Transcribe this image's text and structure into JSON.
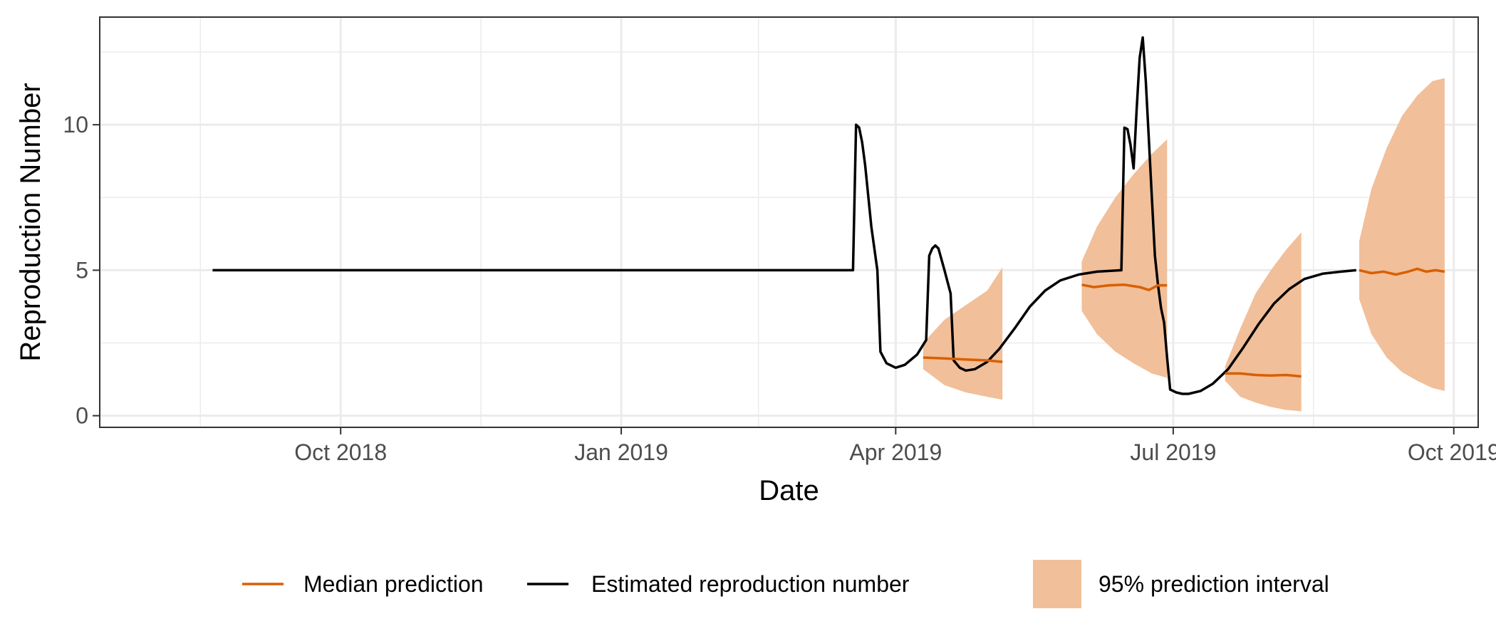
{
  "chart_data": {
    "type": "line",
    "title": "",
    "xlabel": "Date",
    "ylabel": "Reproduction Number",
    "x_axis_type": "date",
    "xlim": [
      "2018-07-14",
      "2019-10-09"
    ],
    "ylim": [
      -0.4,
      13.7
    ],
    "grid": true,
    "theme": "bw",
    "x_ticks": [
      {
        "value": "2018-10-01",
        "label": "Oct 2018"
      },
      {
        "value": "2019-01-01",
        "label": "Jan 2019"
      },
      {
        "value": "2019-04-01",
        "label": "Apr 2019"
      },
      {
        "value": "2019-07-01",
        "label": "Jul 2019"
      },
      {
        "value": "2019-10-01",
        "label": "Oct 2019"
      }
    ],
    "x_minor_ticks": [
      "2018-08-16",
      "2018-11-16",
      "2019-02-15",
      "2019-05-16",
      "2019-08-16"
    ],
    "y_ticks": [
      {
        "value": 0,
        "label": "0"
      },
      {
        "value": 5,
        "label": "5"
      },
      {
        "value": 10,
        "label": "10"
      }
    ],
    "y_minor_ticks": [
      2.5,
      7.5,
      12.5
    ],
    "legend": {
      "position": "bottom",
      "entries": [
        {
          "label": "Median prediction",
          "type": "line",
          "color": "#d95f02"
        },
        {
          "label": "Estimated reproduction number",
          "type": "line",
          "color": "#000000"
        },
        {
          "label": "95% prediction interval",
          "type": "fill",
          "color": "#f1bf99"
        }
      ]
    },
    "series": [
      {
        "name": "Estimated reproduction number",
        "color": "#000000",
        "points": [
          [
            "2018-08-20",
            5.0
          ],
          [
            "2019-03-18",
            5.0
          ],
          [
            "2019-03-19",
            10.0
          ],
          [
            "2019-03-20",
            9.9
          ],
          [
            "2019-03-21",
            9.4
          ],
          [
            "2019-03-22",
            8.6
          ],
          [
            "2019-03-24",
            6.5
          ],
          [
            "2019-03-26",
            5.0
          ],
          [
            "2019-03-27",
            2.2
          ],
          [
            "2019-03-29",
            1.8
          ],
          [
            "2019-04-01",
            1.65
          ],
          [
            "2019-04-04",
            1.75
          ],
          [
            "2019-04-08",
            2.1
          ],
          [
            "2019-04-11",
            2.6
          ],
          [
            "2019-04-12",
            5.5
          ],
          [
            "2019-04-13",
            5.75
          ],
          [
            "2019-04-14",
            5.85
          ],
          [
            "2019-04-15",
            5.75
          ],
          [
            "2019-04-17",
            5.0
          ],
          [
            "2019-04-19",
            4.2
          ],
          [
            "2019-04-20",
            1.9
          ],
          [
            "2019-04-22",
            1.65
          ],
          [
            "2019-04-24",
            1.55
          ],
          [
            "2019-04-27",
            1.6
          ],
          [
            "2019-05-01",
            1.85
          ],
          [
            "2019-05-05",
            2.3
          ],
          [
            "2019-05-10",
            3.0
          ],
          [
            "2019-05-15",
            3.75
          ],
          [
            "2019-05-20",
            4.3
          ],
          [
            "2019-05-25",
            4.65
          ],
          [
            "2019-05-31",
            4.85
          ],
          [
            "2019-06-06",
            4.95
          ],
          [
            "2019-06-14",
            5.0
          ],
          [
            "2019-06-15",
            9.9
          ],
          [
            "2019-06-16",
            9.85
          ],
          [
            "2019-06-17",
            9.3
          ],
          [
            "2019-06-18",
            8.5
          ],
          [
            "2019-06-19",
            10.5
          ],
          [
            "2019-06-20",
            12.3
          ],
          [
            "2019-06-21",
            13.0
          ],
          [
            "2019-06-22",
            11.5
          ],
          [
            "2019-06-23",
            9.5
          ],
          [
            "2019-06-24",
            7.5
          ],
          [
            "2019-06-25",
            5.5
          ],
          [
            "2019-06-26",
            4.5
          ],
          [
            "2019-06-27",
            3.7
          ],
          [
            "2019-06-28",
            3.2
          ],
          [
            "2019-06-29",
            2.0
          ],
          [
            "2019-06-30",
            0.9
          ],
          [
            "2019-07-02",
            0.8
          ],
          [
            "2019-07-04",
            0.75
          ],
          [
            "2019-07-06",
            0.75
          ],
          [
            "2019-07-10",
            0.85
          ],
          [
            "2019-07-14",
            1.1
          ],
          [
            "2019-07-19",
            1.6
          ],
          [
            "2019-07-24",
            2.35
          ],
          [
            "2019-07-29",
            3.15
          ],
          [
            "2019-08-03",
            3.85
          ],
          [
            "2019-08-08",
            4.35
          ],
          [
            "2019-08-13",
            4.7
          ],
          [
            "2019-08-19",
            4.88
          ],
          [
            "2019-08-25",
            4.95
          ],
          [
            "2019-08-30",
            5.0
          ]
        ]
      },
      {
        "name": "Median prediction",
        "color": "#d95f02",
        "segments": [
          [
            [
              "2019-04-10",
              2.0
            ],
            [
              "2019-04-17",
              1.97
            ],
            [
              "2019-04-24",
              1.93
            ],
            [
              "2019-05-01",
              1.9
            ],
            [
              "2019-05-06",
              1.85
            ]
          ],
          [
            [
              "2019-06-01",
              4.5
            ],
            [
              "2019-06-05",
              4.42
            ],
            [
              "2019-06-10",
              4.48
            ],
            [
              "2019-06-15",
              4.5
            ],
            [
              "2019-06-20",
              4.42
            ],
            [
              "2019-06-23",
              4.32
            ],
            [
              "2019-06-26",
              4.48
            ],
            [
              "2019-06-29",
              4.48
            ]
          ],
          [
            [
              "2019-07-18",
              1.45
            ],
            [
              "2019-07-23",
              1.45
            ],
            [
              "2019-07-28",
              1.4
            ],
            [
              "2019-08-02",
              1.38
            ],
            [
              "2019-08-07",
              1.4
            ],
            [
              "2019-08-12",
              1.35
            ]
          ],
          [
            [
              "2019-08-31",
              5.0
            ],
            [
              "2019-09-04",
              4.9
            ],
            [
              "2019-09-08",
              4.95
            ],
            [
              "2019-09-12",
              4.85
            ],
            [
              "2019-09-16",
              4.95
            ],
            [
              "2019-09-19",
              5.05
            ],
            [
              "2019-09-22",
              4.95
            ],
            [
              "2019-09-25",
              5.0
            ],
            [
              "2019-09-28",
              4.95
            ]
          ]
        ]
      }
    ],
    "intervals": [
      {
        "name": "95% prediction interval",
        "color": "#f1bf99",
        "upper": [
          [
            "2019-04-10",
            2.5
          ],
          [
            "2019-04-17",
            3.3
          ],
          [
            "2019-04-24",
            3.8
          ],
          [
            "2019-05-01",
            4.3
          ],
          [
            "2019-05-06",
            5.1
          ]
        ],
        "lower": [
          [
            "2019-04-10",
            1.6
          ],
          [
            "2019-04-17",
            1.05
          ],
          [
            "2019-04-24",
            0.8
          ],
          [
            "2019-05-01",
            0.65
          ],
          [
            "2019-05-06",
            0.55
          ]
        ]
      },
      {
        "name": "95% prediction interval",
        "color": "#f1bf99",
        "upper": [
          [
            "2019-06-01",
            5.3
          ],
          [
            "2019-06-06",
            6.5
          ],
          [
            "2019-06-12",
            7.5
          ],
          [
            "2019-06-18",
            8.3
          ],
          [
            "2019-06-24",
            9.0
          ],
          [
            "2019-06-29",
            9.5
          ]
        ],
        "lower": [
          [
            "2019-06-01",
            3.6
          ],
          [
            "2019-06-06",
            2.8
          ],
          [
            "2019-06-12",
            2.2
          ],
          [
            "2019-06-18",
            1.8
          ],
          [
            "2019-06-24",
            1.45
          ],
          [
            "2019-06-29",
            1.3
          ]
        ]
      },
      {
        "name": "95% prediction interval",
        "color": "#f1bf99",
        "upper": [
          [
            "2019-07-18",
            1.7
          ],
          [
            "2019-07-23",
            3.0
          ],
          [
            "2019-07-28",
            4.2
          ],
          [
            "2019-08-02",
            5.0
          ],
          [
            "2019-08-07",
            5.7
          ],
          [
            "2019-08-12",
            6.3
          ]
        ],
        "lower": [
          [
            "2019-07-18",
            1.2
          ],
          [
            "2019-07-23",
            0.65
          ],
          [
            "2019-07-28",
            0.45
          ],
          [
            "2019-08-02",
            0.3
          ],
          [
            "2019-08-07",
            0.2
          ],
          [
            "2019-08-12",
            0.15
          ]
        ]
      },
      {
        "name": "95% prediction interval",
        "color": "#f1bf99",
        "upper": [
          [
            "2019-08-31",
            6.0
          ],
          [
            "2019-09-04",
            7.8
          ],
          [
            "2019-09-09",
            9.2
          ],
          [
            "2019-09-14",
            10.3
          ],
          [
            "2019-09-19",
            11.0
          ],
          [
            "2019-09-24",
            11.5
          ],
          [
            "2019-09-28",
            11.6
          ]
        ],
        "lower": [
          [
            "2019-08-31",
            4.0
          ],
          [
            "2019-09-04",
            2.8
          ],
          [
            "2019-09-09",
            2.0
          ],
          [
            "2019-09-14",
            1.5
          ],
          [
            "2019-09-19",
            1.2
          ],
          [
            "2019-09-24",
            0.95
          ],
          [
            "2019-09-28",
            0.85
          ]
        ]
      }
    ]
  }
}
